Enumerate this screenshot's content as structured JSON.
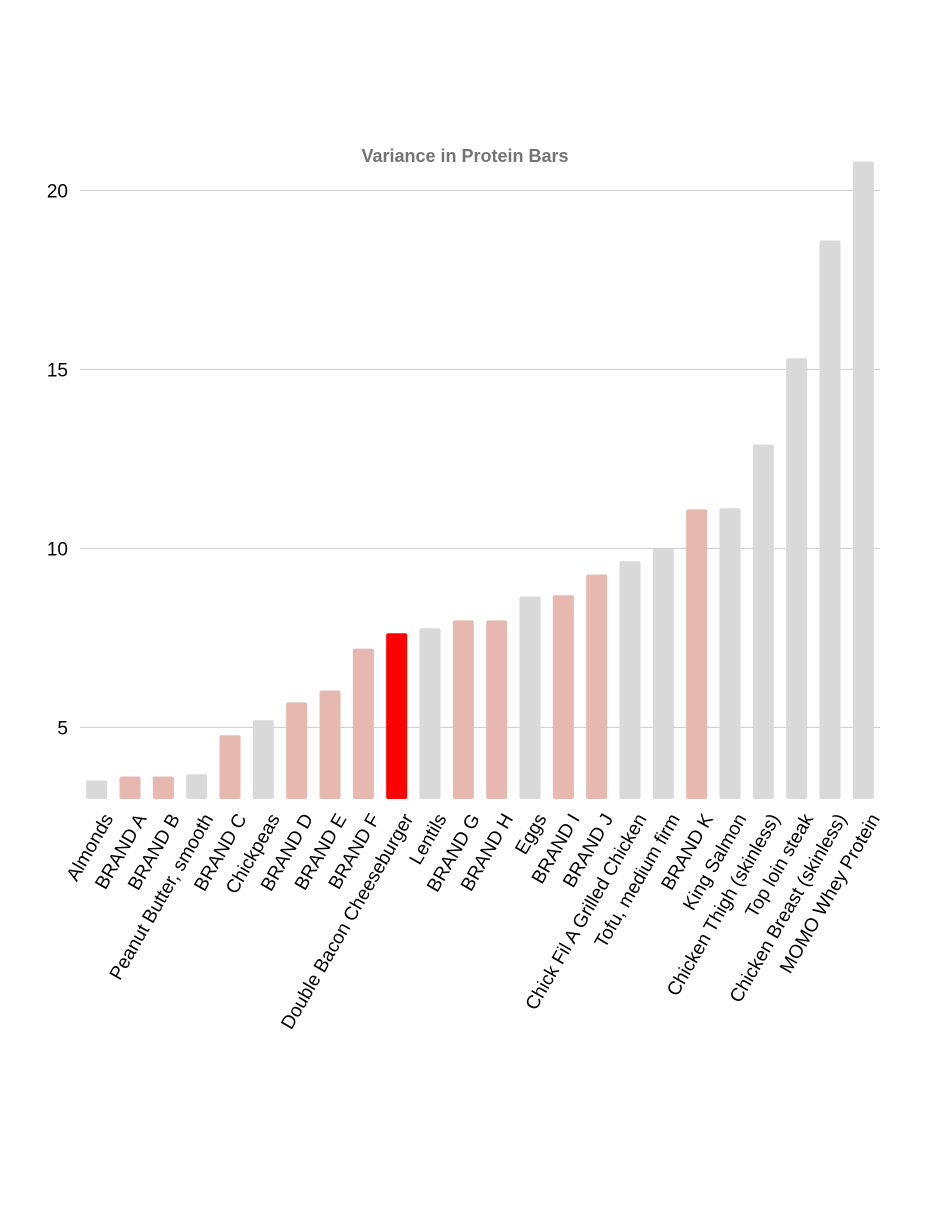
{
  "chart_data": {
    "type": "bar",
    "title": "Variance in Protein Bars",
    "xlabel": "",
    "ylabel": "",
    "ylim": [
      3,
      21.5
    ],
    "yticks": [
      5,
      10,
      15,
      20
    ],
    "grid": true,
    "legend": "none",
    "colors": {
      "food": "#d9d9d9",
      "brand": "#e6b8af",
      "highlight": "#ff0000",
      "grid": "#cccccc",
      "title": "#757575"
    },
    "categories": [
      "Almonds",
      "BRAND A",
      "BRAND B",
      "Peanut Butter, smooth",
      "BRAND C",
      "Chickpeas",
      "BRAND D",
      "BRAND E",
      "BRAND F",
      "Double Bacon Cheeseburger",
      "Lentils",
      "BRAND G",
      "BRAND H",
      "Eggs",
      "BRAND I",
      "BRAND J",
      "Chick Fil A Grilled Chicken",
      "Tofu, medium firm",
      "BRAND K",
      "King Salmon",
      "Chicken Thigh (skinless)",
      "Top loin steak",
      "Chicken Breast (skinless)",
      "MOMO Whey Protein"
    ],
    "values": [
      3.52,
      3.63,
      3.63,
      3.69,
      4.78,
      5.2,
      5.7,
      6.03,
      7.2,
      7.63,
      7.77,
      7.99,
      7.99,
      8.66,
      8.69,
      9.27,
      9.64,
      10.0,
      11.09,
      11.12,
      12.9,
      15.31,
      18.6,
      20.81
    ],
    "bar_kind": [
      "food",
      "brand",
      "brand",
      "food",
      "brand",
      "food",
      "brand",
      "brand",
      "brand",
      "highlight",
      "food",
      "brand",
      "brand",
      "food",
      "brand",
      "brand",
      "food",
      "food",
      "brand",
      "food",
      "food",
      "food",
      "food",
      "food"
    ]
  }
}
